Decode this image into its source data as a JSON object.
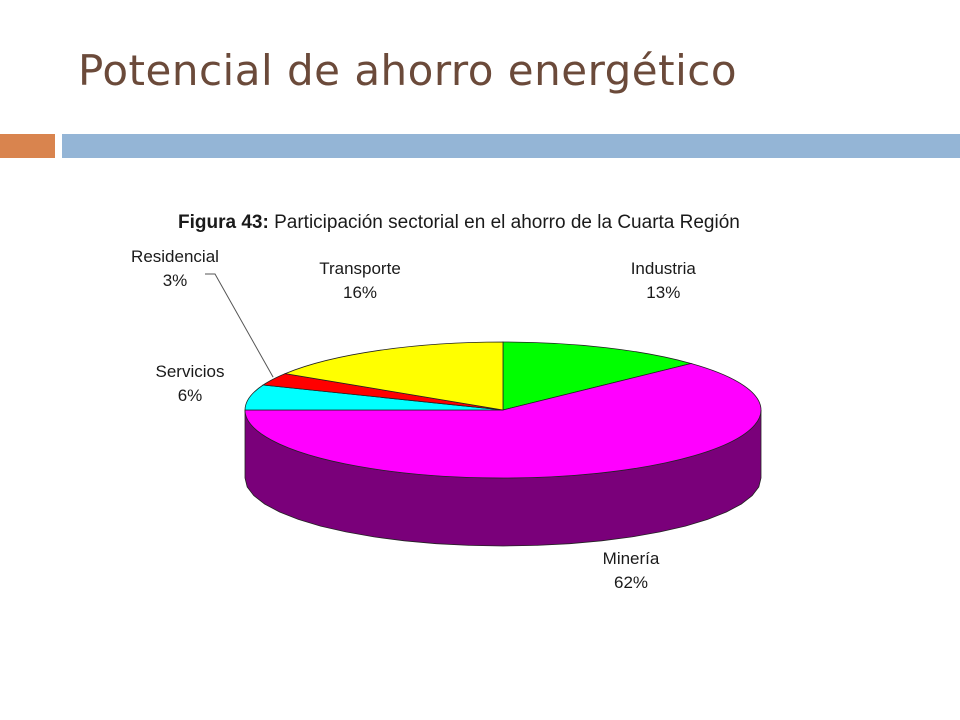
{
  "slide": {
    "title": "Potencial de ahorro energético",
    "accent_color": "#d9844e",
    "bar_color": "#94b5d6",
    "title_color": "#6b4a3a"
  },
  "chart_data": {
    "type": "pie",
    "title_prefix": "Figura 43:",
    "title": "Participación sectorial en el ahorro de la Cuarta Región",
    "three_d": true,
    "slices": [
      {
        "label": "Industria",
        "value": 13,
        "value_label": "13%",
        "color": "#00ff00",
        "side_color": "#008800"
      },
      {
        "label": "Minería",
        "value": 62,
        "value_label": "62%",
        "color": "#ff00ff",
        "side_color": "#7a007a"
      },
      {
        "label": "Servicios",
        "value": 6,
        "value_label": "6%",
        "color": "#00ffff",
        "side_color": "#008080"
      },
      {
        "label": "Residencial",
        "value": 3,
        "value_label": "3%",
        "color": "#ff0000",
        "side_color": "#880000"
      },
      {
        "label": "Transporte",
        "value": 16,
        "value_label": "16%",
        "color": "#ffff00",
        "side_color": "#888800"
      }
    ]
  }
}
